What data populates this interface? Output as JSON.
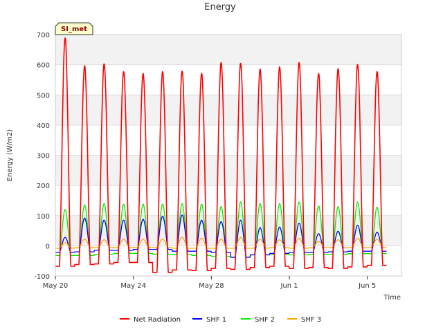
{
  "chart_data": {
    "type": "line",
    "title": "Energy",
    "xlabel": "Time",
    "ylabel": "Energy (W/m2)",
    "badge": "SI_met",
    "ylim": [
      -100,
      700
    ],
    "yticks": [
      -100,
      0,
      100,
      200,
      300,
      400,
      500,
      600,
      700
    ],
    "xlim": [
      "2024-05-20",
      "2024-06-06T18:00"
    ],
    "xticks": [
      {
        "x": "2024-05-20",
        "label": "May 20"
      },
      {
        "x": "2024-05-24",
        "label": "May 24"
      },
      {
        "x": "2024-05-28",
        "label": "May 28"
      },
      {
        "x": "2024-06-01",
        "label": "Jun 1"
      },
      {
        "x": "2024-06-05",
        "label": "Jun 5"
      }
    ],
    "grid": "horizontal",
    "legend_position": "bottom",
    "days": [
      "2024-05-20",
      "2024-05-21",
      "2024-05-22",
      "2024-05-23",
      "2024-05-24",
      "2024-05-25",
      "2024-05-26",
      "2024-05-27",
      "2024-05-28",
      "2024-05-29",
      "2024-05-30",
      "2024-05-31",
      "2024-06-01",
      "2024-06-02",
      "2024-06-03",
      "2024-06-04",
      "2024-06-05",
      "2024-06-06"
    ],
    "series": [
      {
        "name": "Net Radiation",
        "color": "#ff0000",
        "daily_max": [
          690,
          598,
          604,
          578,
          572,
          578,
          580,
          572,
          608,
          606,
          586,
          594,
          608,
          572,
          588,
          602,
          578
        ],
        "night_min": [
          -68,
          -62,
          -60,
          -55,
          -55,
          -88,
          -80,
          -82,
          -75,
          -78,
          -72,
          -68,
          -75,
          -72,
          -75,
          -70,
          -65
        ]
      },
      {
        "name": "SHF 1",
        "color": "#0000ff",
        "daily_max": [
          28,
          92,
          85,
          85,
          88,
          98,
          102,
          85,
          80,
          85,
          60,
          62,
          75,
          40,
          48,
          68,
          45
        ],
        "night_min": [
          -22,
          -20,
          -15,
          -15,
          -12,
          -12,
          -18,
          -18,
          -22,
          -38,
          -30,
          -25,
          -22,
          -22,
          -20,
          -18,
          -18
        ]
      },
      {
        "name": "SHF 2",
        "color": "#00ee00",
        "daily_max": [
          120,
          135,
          140,
          138,
          138,
          138,
          140,
          138,
          130,
          145,
          140,
          140,
          145,
          132,
          130,
          145,
          128
        ],
        "night_min": [
          -32,
          -32,
          -28,
          -25,
          -25,
          -28,
          -28,
          -32,
          -35,
          -38,
          -30,
          -28,
          -30,
          -28,
          -28,
          -26,
          -26
        ]
      },
      {
        "name": "SHF 3",
        "color": "#ffa500",
        "daily_max": [
          10,
          22,
          20,
          22,
          22,
          22,
          28,
          25,
          22,
          28,
          22,
          20,
          25,
          15,
          20,
          25,
          22
        ],
        "night_min": [
          -8,
          -6,
          -6,
          -6,
          -6,
          -6,
          -8,
          -8,
          -8,
          -8,
          -8,
          -6,
          -8,
          -6,
          -6,
          -6,
          -6
        ]
      }
    ]
  }
}
